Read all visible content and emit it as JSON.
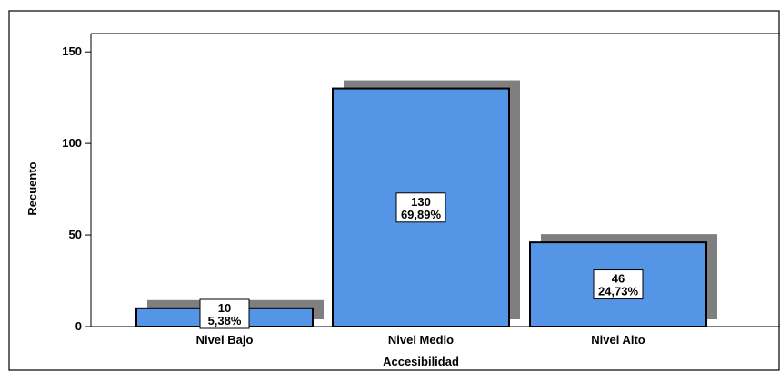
{
  "chart_data": {
    "type": "bar",
    "categories": [
      "Nivel Bajo",
      "Nivel Medio",
      "Nivel Alto"
    ],
    "values": [
      10,
      130,
      46
    ],
    "percent_labels": [
      "5,38%",
      "69,89%",
      "24,73%"
    ],
    "count_labels": [
      "10",
      "130",
      "46"
    ],
    "xlabel": "Accesibilidad",
    "ylabel": "Recuento",
    "ylim": [
      0,
      160
    ],
    "yticks": [
      0,
      50,
      100,
      150
    ],
    "grid": false,
    "colors": {
      "bar_fill": "#5595e6",
      "bar_shadow": "#7f7f7f",
      "bar_stroke": "#000000",
      "frame": "#000000"
    }
  }
}
